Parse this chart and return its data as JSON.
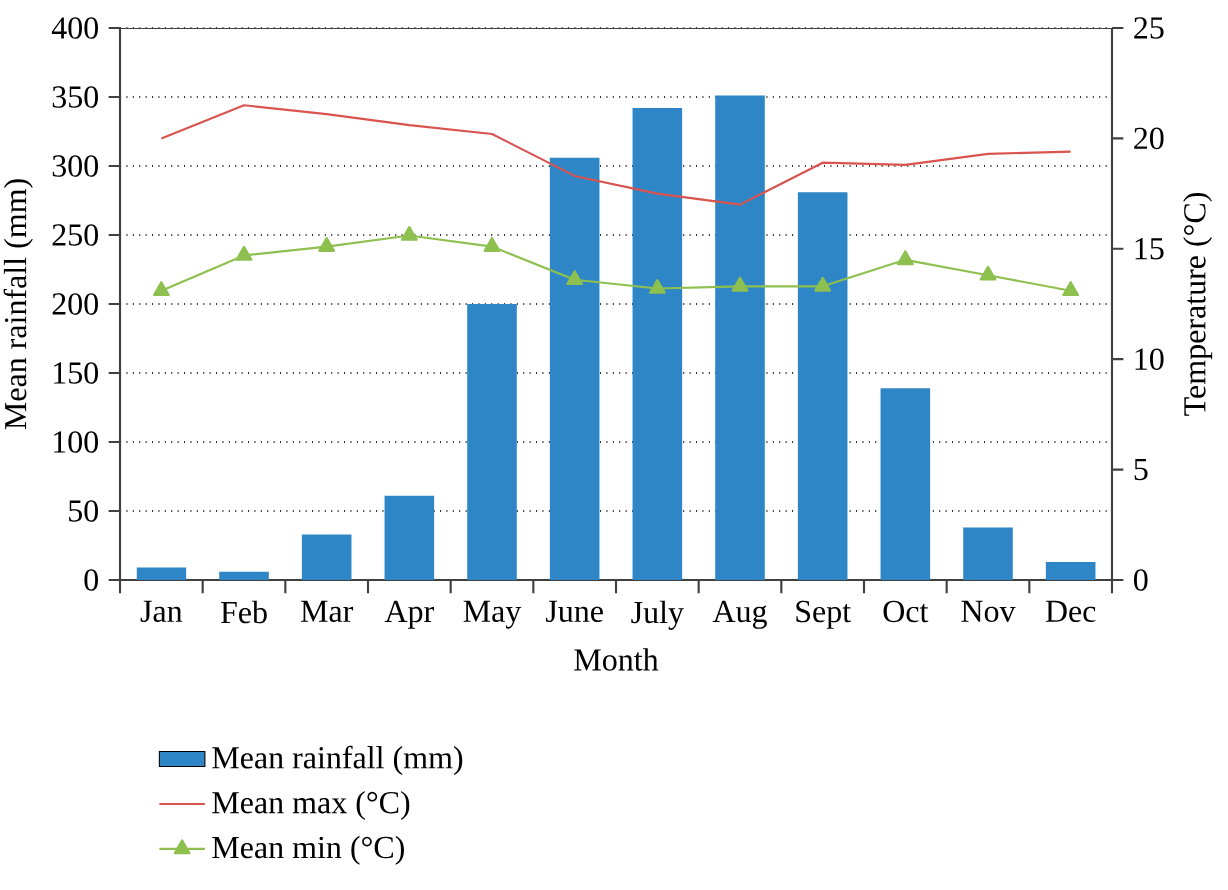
{
  "chart_data": {
    "type": "bar",
    "xlabel": "Month",
    "ylabel": "Mean rainfall (mm)",
    "y2label": "Temperature (°C)",
    "categories": [
      "Jan",
      "Feb",
      "Mar",
      "Apr",
      "May",
      "June",
      "July",
      "Aug",
      "Sept",
      "Oct",
      "Nov",
      "Dec"
    ],
    "series": [
      {
        "name": "Mean rainfall (mm)",
        "color": "#2e86c6",
        "values": [
          9,
          6,
          33,
          61,
          200,
          306,
          342,
          351,
          281,
          139,
          38,
          13
        ]
      },
      {
        "name": "Mean max (°C)",
        "type": "line",
        "axis": "y2",
        "color": "#d9534f",
        "marker": "none",
        "values": [
          20.0,
          21.5,
          21.1,
          20.6,
          20.2,
          18.3,
          17.5,
          17.0,
          18.9,
          18.8,
          19.3,
          19.4
        ]
      },
      {
        "name": "Mean min (°C)",
        "type": "line",
        "axis": "y2",
        "color": "#8dc04e",
        "marker": "triangle",
        "values": [
          13.1,
          14.7,
          15.1,
          15.6,
          15.1,
          13.6,
          13.2,
          13.3,
          13.3,
          14.5,
          13.8,
          13.1
        ]
      }
    ],
    "ylim": [
      0,
      400
    ],
    "yticks": [
      0,
      50,
      100,
      150,
      200,
      250,
      300,
      350,
      400
    ],
    "y2lim": [
      0,
      25
    ],
    "y2ticks": [
      0,
      5,
      10,
      15,
      20,
      25
    ],
    "grid": "y",
    "legend": "bottom"
  }
}
